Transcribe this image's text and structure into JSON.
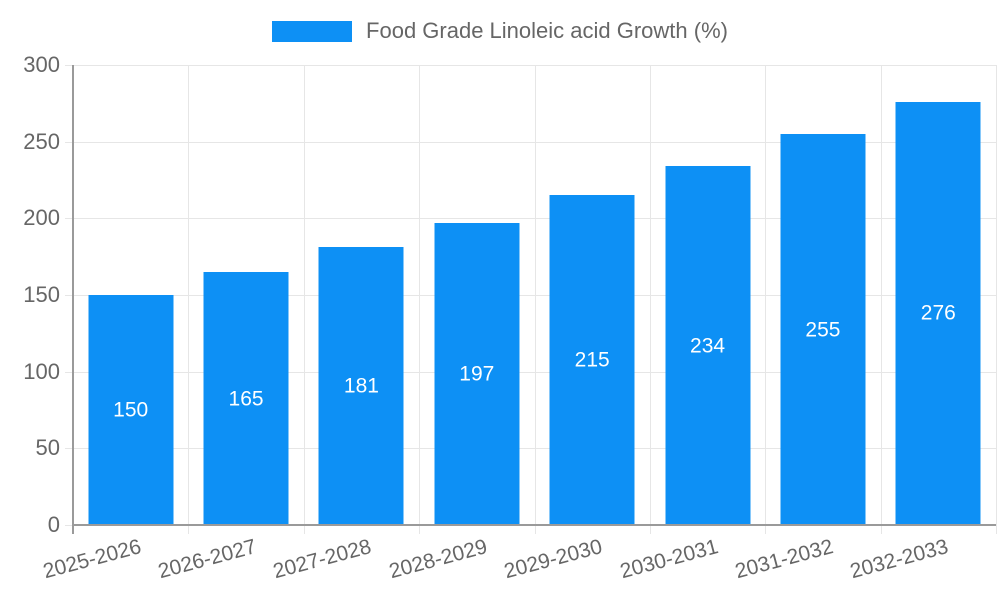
{
  "chart_data": {
    "type": "bar",
    "title": "",
    "legend": "Food Grade Linoleic acid Growth (%)",
    "legend_position": "top-center",
    "categories": [
      "2025-2026",
      "2026-2027",
      "2027-2028",
      "2028-2029",
      "2029-2030",
      "2030-2031",
      "2031-2032",
      "2032-2033"
    ],
    "values": [
      150,
      165,
      181,
      197,
      215,
      234,
      255,
      276
    ],
    "xlabel": "",
    "ylabel": "",
    "ylim": [
      0,
      300
    ],
    "yticks": [
      0,
      50,
      100,
      150,
      200,
      250,
      300
    ],
    "grid": true,
    "value_labels": "centered-inside-bars-white",
    "colors": {
      "bar": "#0d90f5",
      "grid_line": "#e6e6e6",
      "axis_line": "#9a9a9a",
      "axis_text": "#666666",
      "value_text": "#ffffff",
      "background": "#ffffff"
    }
  }
}
